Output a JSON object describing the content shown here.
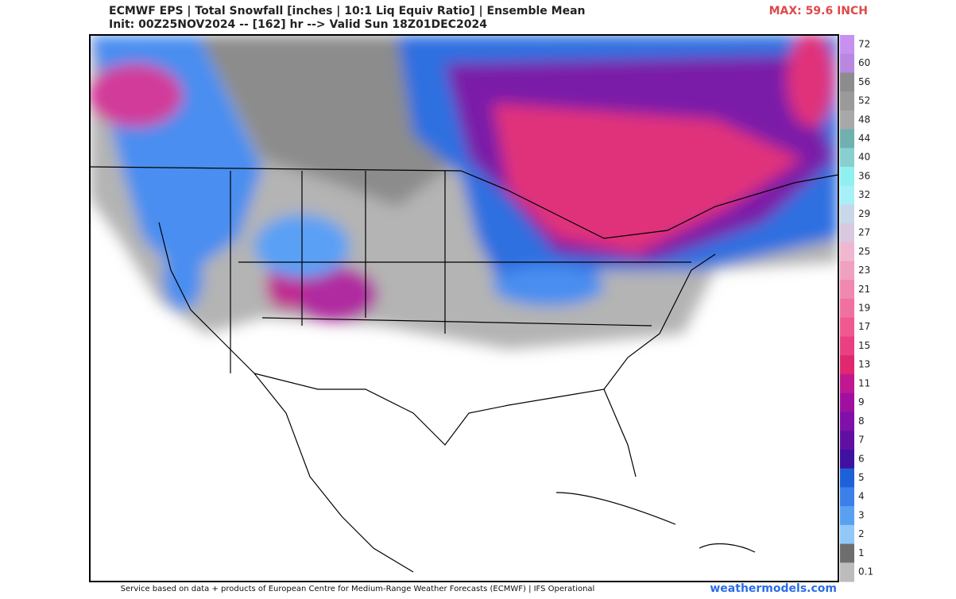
{
  "header": {
    "title": "ECMWF EPS | Total Snowfall [inches | 10:1 Liq Equiv Ratio] | Ensemble Mean",
    "subtitle": "Init: 00Z25NOV2024 -- [162] hr --> Valid Sun 18Z01DEC2024",
    "max": "MAX: 59.6 INCH"
  },
  "colorbar": {
    "labels": [
      "72",
      "60",
      "56",
      "52",
      "48",
      "44",
      "40",
      "36",
      "32",
      "29",
      "27",
      "25",
      "23",
      "21",
      "19",
      "17",
      "15",
      "13",
      "11",
      "9",
      "8",
      "7",
      "6",
      "5",
      "4",
      "3",
      "2",
      "1",
      "0.1"
    ]
  },
  "footer": {
    "credit": "Service based on data + products of European Centre for Medium-Range Weather Forecasts (ECMWF) | IFS Operational",
    "site": "weathermodels.com"
  }
}
